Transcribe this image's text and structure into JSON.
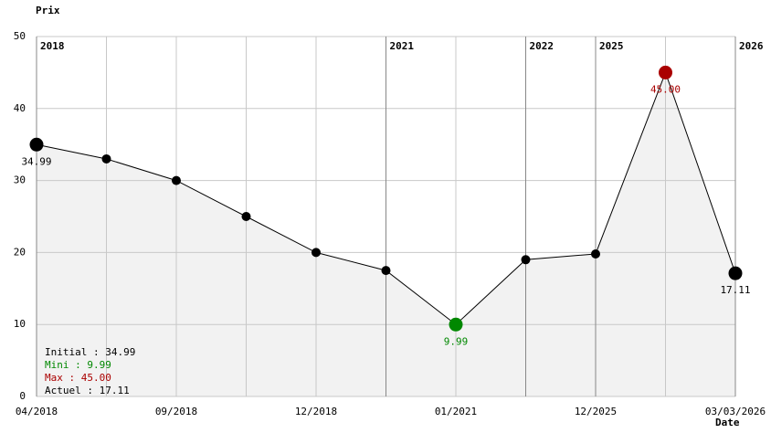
{
  "chart_data": {
    "type": "line",
    "y_label": "Prix",
    "x_label": "Date",
    "categories": [
      "04/2018",
      null,
      "09/2018",
      null,
      "12/2018",
      null,
      "01/2021",
      null,
      "12/2025",
      null,
      "03/03/2026"
    ],
    "year_labels": [
      "2018",
      null,
      null,
      null,
      null,
      "2021",
      null,
      "2022",
      "2025",
      null,
      "2026"
    ],
    "series": [
      {
        "color": "#000000",
        "fill": "#f2f2f2",
        "values": [
          34.99,
          33,
          30,
          25,
          20,
          17.5,
          9.99,
          19,
          19.8,
          45,
          17.11
        ],
        "value_labels": [
          "34.99",
          null,
          null,
          null,
          null,
          null,
          "9.99",
          null,
          null,
          "45.00",
          "17.11"
        ],
        "marker_colors": [
          "#000000",
          "#000000",
          "#000000",
          "#000000",
          "#000000",
          "#000000",
          "#008800",
          "#000000",
          "#000000",
          "#aa0000",
          "#000000"
        ]
      }
    ],
    "ylim": [
      0,
      50
    ],
    "yticks": [
      0,
      10,
      20,
      30,
      40,
      50
    ],
    "grid": true,
    "summary": [
      {
        "text": "Initial : 34.99",
        "color": "#000000"
      },
      {
        "text": "Mini : 9.99",
        "color": "#008800"
      },
      {
        "text": "Max : 45.00",
        "color": "#aa0000"
      },
      {
        "text": "Actuel : 17.11",
        "color": "#000000"
      }
    ]
  }
}
